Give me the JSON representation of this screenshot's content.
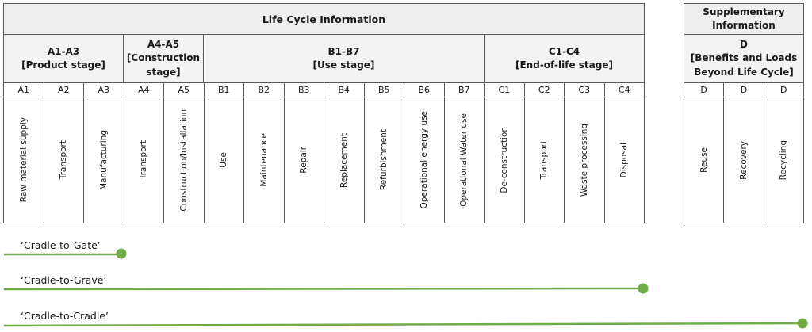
{
  "lifecycle": {
    "title": "Life Cycle Information",
    "groups": [
      {
        "id": "a1a3",
        "line1": "A1-A3",
        "line2": "[Product stage]"
      },
      {
        "id": "a4a5",
        "line1": "A4-A5",
        "line2": "[Construction stage]"
      },
      {
        "id": "b1b7",
        "line1": "B1-B7",
        "line2": "[Use stage]"
      },
      {
        "id": "c1c4",
        "line1": "C1-C4",
        "line2": "[End-of-life stage]"
      }
    ],
    "modules": [
      {
        "code": "A1",
        "stage": "Raw material supply"
      },
      {
        "code": "A2",
        "stage": "Transport"
      },
      {
        "code": "A3",
        "stage": "Manufacturing"
      },
      {
        "code": "A4",
        "stage": "Transport"
      },
      {
        "code": "A5",
        "stage": "Construction/Installation"
      },
      {
        "code": "B1",
        "stage": "Use"
      },
      {
        "code": "B2",
        "stage": "Maintenance"
      },
      {
        "code": "B3",
        "stage": "Repair"
      },
      {
        "code": "B4",
        "stage": "Replacement"
      },
      {
        "code": "B5",
        "stage": "Refurbishment"
      },
      {
        "code": "B6",
        "stage": "Operational energy use"
      },
      {
        "code": "B7",
        "stage": "Operational Water use"
      },
      {
        "code": "C1",
        "stage": "De-construction"
      },
      {
        "code": "C2",
        "stage": "Transport"
      },
      {
        "code": "C3",
        "stage": "Waste processing"
      },
      {
        "code": "C4",
        "stage": "Disposal"
      }
    ]
  },
  "supplementary": {
    "title": "Supplementary Information",
    "group": {
      "line1": "D",
      "line2": "[Benefits and Loads Beyond Life Cycle]"
    },
    "modules": [
      {
        "code": "D",
        "stage": "Reuse"
      },
      {
        "code": "D",
        "stage": "Recovery"
      },
      {
        "code": "D",
        "stage": "Recycling"
      }
    ]
  },
  "scopes": [
    {
      "label": "‘Cradle-to-Gate’"
    },
    {
      "label": "‘Cradle-to-Grave’"
    },
    {
      "label": "‘Cradle-to-Cradle’"
    }
  ],
  "colors": {
    "scope_line": "#70ad47",
    "border": "#595959",
    "header_fill": "#efefef"
  }
}
